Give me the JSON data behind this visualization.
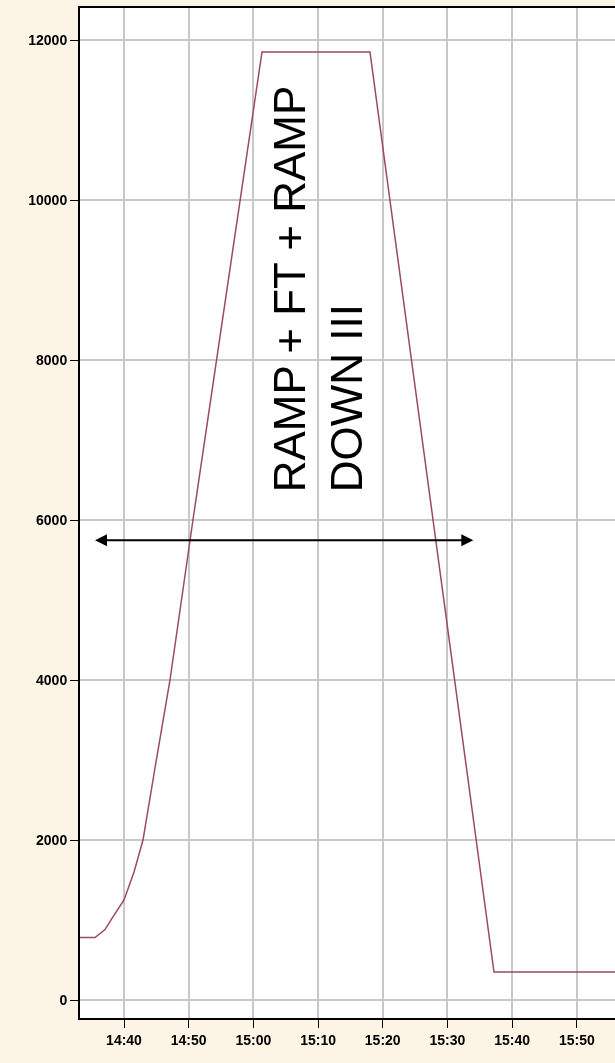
{
  "chart_data": {
    "type": "line",
    "x": [
      14.5533,
      14.592,
      14.6177,
      14.6357,
      14.6667,
      14.6925,
      14.7156,
      14.7465,
      14.7852,
      14.8443,
      15.0222,
      15.3004,
      15.6199,
      15.9317
    ],
    "series": [
      {
        "color": "#9a4a62",
        "values": [
          780,
          780,
          880,
          1020,
          1250,
          1600,
          2000,
          2900,
          4000,
          6000,
          11850,
          11850,
          350,
          350
        ]
      }
    ],
    "xlim": [
      14.5533,
      15.9317
    ],
    "ylim": [
      -225,
      12400
    ],
    "xticks": [
      {
        "value": 14.6667,
        "label": "14:40"
      },
      {
        "value": 14.8333,
        "label": "14:50"
      },
      {
        "value": 15.0,
        "label": "15:00"
      },
      {
        "value": 15.1667,
        "label": "15:10"
      },
      {
        "value": 15.3333,
        "label": "15:20"
      },
      {
        "value": 15.5,
        "label": "15:30"
      },
      {
        "value": 15.6667,
        "label": "15:40"
      },
      {
        "value": 15.8333,
        "label": "15:50"
      }
    ],
    "yticks": [
      0,
      2000,
      4000,
      6000,
      8000,
      10000,
      12000
    ],
    "annotations": [
      "RAMP + FT + RAMP\nDOWN III"
    ],
    "grid": true,
    "legend": false,
    "marker": "none",
    "line_style": "solid"
  }
}
